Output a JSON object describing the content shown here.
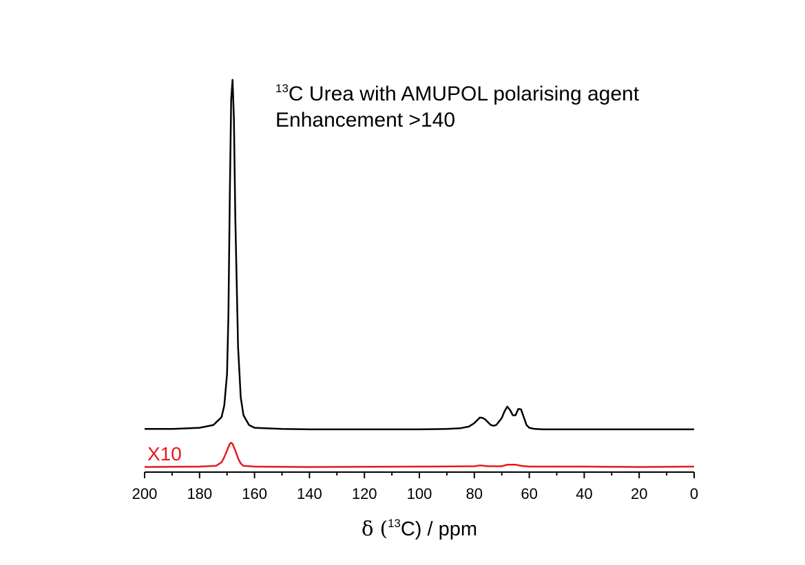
{
  "chart_data": {
    "type": "line",
    "annotations": [
      {
        "sup": "13",
        "text": "C Urea with AMUPOL polarising agent"
      },
      {
        "text": "Enhancement >140"
      }
    ],
    "xlabel": {
      "prefix": "δ (",
      "sup": "13",
      "suffix": "C) / ppm"
    },
    "xlim": [
      200,
      0
    ],
    "xticks": [
      200,
      180,
      160,
      140,
      120,
      100,
      80,
      60,
      40,
      20,
      0
    ],
    "xminor_ticks": [
      190,
      170,
      150,
      130,
      110,
      90,
      70,
      50,
      30,
      10
    ],
    "ylim": [
      0,
      100
    ],
    "series": [
      {
        "color": "#000000",
        "x": [
          200,
          190,
          180,
          175,
          172,
          171,
          170,
          169.5,
          169,
          168.5,
          168,
          167.5,
          167,
          166,
          165,
          164,
          162,
          160,
          150,
          140,
          120,
          100,
          90,
          85,
          82,
          80,
          78,
          77,
          76,
          74,
          73,
          72,
          70,
          69,
          68,
          67,
          66,
          65,
          64,
          63,
          62,
          61,
          60,
          58,
          55,
          50,
          40,
          20,
          0
        ],
        "values": [
          11,
          11,
          11.3,
          12,
          14,
          17,
          25,
          40,
          70,
          95,
          100,
          90,
          65,
          32,
          19,
          14.5,
          12,
          11.3,
          11,
          10.9,
          10.9,
          10.9,
          11,
          11.2,
          11.6,
          12.5,
          13.9,
          13.8,
          13.4,
          12,
          11.8,
          12,
          13.8,
          15.5,
          16.7,
          15.8,
          14.5,
          14.5,
          16.1,
          16,
          14,
          12,
          11.3,
          11,
          10.9,
          10.9,
          10.9,
          10.9,
          10.9
        ]
      },
      {
        "name": "X10",
        "color": "#e8191a",
        "x": [
          200,
          180,
          174,
          172,
          171,
          170,
          169,
          168.5,
          168,
          167,
          166,
          165,
          164,
          160,
          140,
          100,
          80,
          78,
          75,
          70,
          68,
          65,
          63,
          60,
          40,
          20,
          0
        ],
        "values": [
          1.3,
          1.4,
          1.6,
          2.5,
          3.8,
          5.5,
          7.2,
          7.5,
          7.2,
          5.5,
          3.5,
          2.2,
          1.6,
          1.4,
          1.3,
          1.4,
          1.5,
          1.7,
          1.5,
          1.5,
          1.9,
          1.9,
          1.6,
          1.4,
          1.4,
          1.3,
          1.4
        ]
      }
    ]
  }
}
